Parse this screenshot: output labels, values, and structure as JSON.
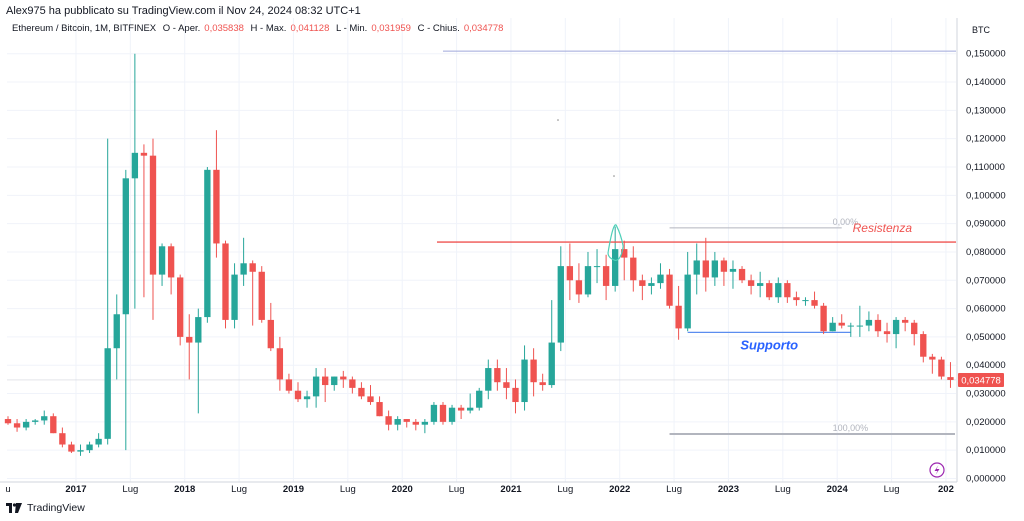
{
  "header": {
    "published_by": "Alex975 ha pubblicato su TradingView.com il Nov 24, 2024 08:32 UTC+1",
    "symbol": "Ethereum / Bitcoin, 1M, BITFINEX",
    "open_label": "O - Aper.",
    "open_value": "0,035838",
    "high_label": "H - Max.",
    "high_value": "0,041128",
    "low_label": "L - Min.",
    "low_value": "0,031959",
    "close_label": "C - Chius.",
    "close_value": "0,034778",
    "currency": "BTC"
  },
  "footer": {
    "brand": "TradingView"
  },
  "colors": {
    "up": "#26a69a",
    "down": "#ef5350",
    "resistance": "#ef5350",
    "support": "#2962ff",
    "fib": "#b2b5be"
  },
  "chart_data": {
    "type": "candlestick",
    "period": "1M",
    "y_axis_ticks": [
      "0,150000",
      "0,140000",
      "0,130000",
      "0,120000",
      "0,110000",
      "0,100000",
      "0,090000",
      "0,080000",
      "0,070000",
      "0,060000",
      "0,050000",
      "0,040000",
      "0,030000",
      "0,020000",
      "0,010000",
      "0,000000"
    ],
    "ylim": [
      -0.0003,
      0.159
    ],
    "x_axis_ticks": [
      {
        "label": "u",
        "index": 0
      },
      {
        "label": "2017",
        "index": 7.5
      },
      {
        "label": "Lug",
        "index": 13.5
      },
      {
        "label": "2018",
        "index": 19.5
      },
      {
        "label": "Lug",
        "index": 25.5
      },
      {
        "label": "2019",
        "index": 31.5
      },
      {
        "label": "Lug",
        "index": 37.5
      },
      {
        "label": "2020",
        "index": 43.5
      },
      {
        "label": "Lug",
        "index": 49.5
      },
      {
        "label": "2021",
        "index": 55.5
      },
      {
        "label": "Lug",
        "index": 61.5
      },
      {
        "label": "2022",
        "index": 67.5
      },
      {
        "label": "Lug",
        "index": 73.5
      },
      {
        "label": "2023",
        "index": 79.5
      },
      {
        "label": "Lug",
        "index": 85.5
      },
      {
        "label": "2024",
        "index": 91.5
      },
      {
        "label": "Lug",
        "index": 97.5
      },
      {
        "label": "202",
        "index": 103.5
      }
    ],
    "last_price_label": "0,034778",
    "candles": [
      [
        0.021,
        0.022,
        0.019,
        0.0195
      ],
      [
        0.0195,
        0.021,
        0.0165,
        0.018
      ],
      [
        0.018,
        0.021,
        0.017,
        0.02
      ],
      [
        0.02,
        0.021,
        0.019,
        0.0205
      ],
      [
        0.0205,
        0.024,
        0.019,
        0.022
      ],
      [
        0.022,
        0.023,
        0.016,
        0.016
      ],
      [
        0.016,
        0.018,
        0.011,
        0.012
      ],
      [
        0.012,
        0.013,
        0.009,
        0.0095
      ],
      [
        0.0095,
        0.012,
        0.008,
        0.01
      ],
      [
        0.01,
        0.013,
        0.009,
        0.012
      ],
      [
        0.012,
        0.016,
        0.011,
        0.014
      ],
      [
        0.014,
        0.12,
        0.012,
        0.046
      ],
      [
        0.046,
        0.065,
        0.035,
        0.058
      ],
      [
        0.058,
        0.109,
        0.01,
        0.106
      ],
      [
        0.106,
        0.15,
        0.06,
        0.115
      ],
      [
        0.115,
        0.118,
        0.064,
        0.114
      ],
      [
        0.114,
        0.12,
        0.056,
        0.072
      ],
      [
        0.072,
        0.083,
        0.068,
        0.082
      ],
      [
        0.082,
        0.083,
        0.065,
        0.071
      ],
      [
        0.071,
        0.072,
        0.047,
        0.05
      ],
      [
        0.05,
        0.058,
        0.035,
        0.048
      ],
      [
        0.048,
        0.06,
        0.023,
        0.057
      ],
      [
        0.057,
        0.11,
        0.055,
        0.109
      ],
      [
        0.109,
        0.123,
        0.078,
        0.083
      ],
      [
        0.083,
        0.084,
        0.053,
        0.056
      ],
      [
        0.056,
        0.076,
        0.053,
        0.072
      ],
      [
        0.072,
        0.085,
        0.068,
        0.076
      ],
      [
        0.076,
        0.077,
        0.054,
        0.073
      ],
      [
        0.073,
        0.075,
        0.055,
        0.056
      ],
      [
        0.056,
        0.062,
        0.045,
        0.046
      ],
      [
        0.046,
        0.05,
        0.031,
        0.035
      ],
      [
        0.035,
        0.037,
        0.03,
        0.031
      ],
      [
        0.031,
        0.034,
        0.027,
        0.028
      ],
      [
        0.028,
        0.031,
        0.025,
        0.029
      ],
      [
        0.029,
        0.039,
        0.025,
        0.036
      ],
      [
        0.036,
        0.039,
        0.027,
        0.033
      ],
      [
        0.033,
        0.036,
        0.031,
        0.036
      ],
      [
        0.036,
        0.038,
        0.032,
        0.035
      ],
      [
        0.035,
        0.036,
        0.03,
        0.032
      ],
      [
        0.032,
        0.034,
        0.028,
        0.029
      ],
      [
        0.029,
        0.033,
        0.026,
        0.027
      ],
      [
        0.027,
        0.029,
        0.022,
        0.022
      ],
      [
        0.022,
        0.024,
        0.017,
        0.019
      ],
      [
        0.019,
        0.022,
        0.017,
        0.021
      ],
      [
        0.021,
        0.021,
        0.018,
        0.02
      ],
      [
        0.02,
        0.021,
        0.017,
        0.019
      ],
      [
        0.019,
        0.021,
        0.016,
        0.02
      ],
      [
        0.02,
        0.027,
        0.019,
        0.026
      ],
      [
        0.026,
        0.027,
        0.019,
        0.02
      ],
      [
        0.02,
        0.026,
        0.019,
        0.025
      ],
      [
        0.025,
        0.026,
        0.021,
        0.024
      ],
      [
        0.024,
        0.03,
        0.023,
        0.025
      ],
      [
        0.025,
        0.032,
        0.024,
        0.031
      ],
      [
        0.031,
        0.042,
        0.028,
        0.039
      ],
      [
        0.039,
        0.042,
        0.031,
        0.034
      ],
      [
        0.034,
        0.039,
        0.028,
        0.032
      ],
      [
        0.032,
        0.035,
        0.023,
        0.027
      ],
      [
        0.027,
        0.047,
        0.024,
        0.042
      ],
      [
        0.042,
        0.046,
        0.029,
        0.034
      ],
      [
        0.034,
        0.037,
        0.031,
        0.033
      ],
      [
        0.033,
        0.063,
        0.032,
        0.048
      ],
      [
        0.048,
        0.082,
        0.045,
        0.075
      ],
      [
        0.075,
        0.083,
        0.063,
        0.07
      ],
      [
        0.07,
        0.076,
        0.062,
        0.065
      ],
      [
        0.065,
        0.08,
        0.064,
        0.075
      ],
      [
        0.075,
        0.081,
        0.069,
        0.075
      ],
      [
        0.075,
        0.079,
        0.063,
        0.068
      ],
      [
        0.068,
        0.089,
        0.066,
        0.081
      ],
      [
        0.081,
        0.084,
        0.07,
        0.078
      ],
      [
        0.078,
        0.082,
        0.066,
        0.07
      ],
      [
        0.07,
        0.072,
        0.063,
        0.068
      ],
      [
        0.068,
        0.071,
        0.065,
        0.069
      ],
      [
        0.069,
        0.076,
        0.067,
        0.072
      ],
      [
        0.072,
        0.074,
        0.06,
        0.061
      ],
      [
        0.061,
        0.068,
        0.049,
        0.053
      ],
      [
        0.053,
        0.08,
        0.052,
        0.072
      ],
      [
        0.072,
        0.083,
        0.065,
        0.077
      ],
      [
        0.077,
        0.085,
        0.066,
        0.071
      ],
      [
        0.071,
        0.08,
        0.068,
        0.077
      ],
      [
        0.077,
        0.078,
        0.068,
        0.073
      ],
      [
        0.073,
        0.077,
        0.067,
        0.074
      ],
      [
        0.074,
        0.075,
        0.069,
        0.07
      ],
      [
        0.07,
        0.072,
        0.065,
        0.068
      ],
      [
        0.068,
        0.073,
        0.064,
        0.069
      ],
      [
        0.069,
        0.07,
        0.063,
        0.064
      ],
      [
        0.064,
        0.071,
        0.062,
        0.069
      ],
      [
        0.069,
        0.07,
        0.062,
        0.064
      ],
      [
        0.064,
        0.066,
        0.061,
        0.063
      ],
      [
        0.063,
        0.064,
        0.061,
        0.063
      ],
      [
        0.063,
        0.066,
        0.06,
        0.061
      ],
      [
        0.061,
        0.062,
        0.051,
        0.052
      ],
      [
        0.052,
        0.057,
        0.052,
        0.055
      ],
      [
        0.055,
        0.058,
        0.053,
        0.054
      ],
      [
        0.054,
        0.055,
        0.05,
        0.054
      ],
      [
        0.054,
        0.061,
        0.05,
        0.054
      ],
      [
        0.054,
        0.059,
        0.052,
        0.056
      ],
      [
        0.056,
        0.058,
        0.05,
        0.052
      ],
      [
        0.052,
        0.055,
        0.048,
        0.051
      ],
      [
        0.051,
        0.057,
        0.046,
        0.056
      ],
      [
        0.056,
        0.057,
        0.052,
        0.055
      ],
      [
        0.055,
        0.056,
        0.047,
        0.051
      ],
      [
        0.051,
        0.052,
        0.041,
        0.043
      ],
      [
        0.043,
        0.044,
        0.037,
        0.042
      ],
      [
        0.042,
        0.043,
        0.035,
        0.036
      ],
      [
        0.0358,
        0.0411,
        0.032,
        0.0348
      ]
    ],
    "resistance": {
      "label": "Resistenza",
      "value": 0.0835,
      "from_index": 48,
      "to_index": 106
    },
    "support": {
      "label": "Supporto",
      "value": 0.0516,
      "from_index": 75,
      "to_index": 93
    },
    "fibonacci": [
      {
        "label": "0,00%",
        "value": 0.0885
      },
      {
        "label": "100,00%",
        "value": 0.0157
      }
    ],
    "top_line_value": 0.1509,
    "last_price_line_value": 0.0348
  }
}
